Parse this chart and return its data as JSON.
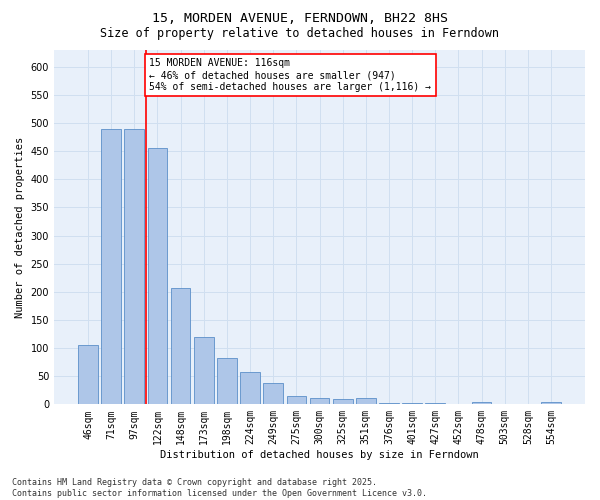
{
  "title": "15, MORDEN AVENUE, FERNDOWN, BH22 8HS",
  "subtitle": "Size of property relative to detached houses in Ferndown",
  "xlabel": "Distribution of detached houses by size in Ferndown",
  "ylabel": "Number of detached properties",
  "categories": [
    "46sqm",
    "71sqm",
    "97sqm",
    "122sqm",
    "148sqm",
    "173sqm",
    "198sqm",
    "224sqm",
    "249sqm",
    "275sqm",
    "300sqm",
    "325sqm",
    "351sqm",
    "376sqm",
    "401sqm",
    "427sqm",
    "452sqm",
    "478sqm",
    "503sqm",
    "528sqm",
    "554sqm"
  ],
  "values": [
    105,
    490,
    490,
    455,
    207,
    120,
    82,
    57,
    38,
    14,
    12,
    10,
    12,
    2,
    2,
    2,
    0,
    5,
    0,
    0,
    5
  ],
  "bar_color": "#aec6e8",
  "bar_edge_color": "#5b8fc9",
  "grid_color": "#d0dff0",
  "background_color": "#e8f0fa",
  "vline_color": "red",
  "annotation_text": "15 MORDEN AVENUE: 116sqm\n← 46% of detached houses are smaller (947)\n54% of semi-detached houses are larger (1,116) →",
  "annotation_box_color": "white",
  "annotation_box_edge_color": "red",
  "footer_text": "Contains HM Land Registry data © Crown copyright and database right 2025.\nContains public sector information licensed under the Open Government Licence v3.0.",
  "ylim": [
    0,
    630
  ],
  "yticks": [
    0,
    50,
    100,
    150,
    200,
    250,
    300,
    350,
    400,
    450,
    500,
    550,
    600
  ],
  "title_fontsize": 9.5,
  "subtitle_fontsize": 8.5,
  "axis_label_fontsize": 7.5,
  "tick_fontsize": 7,
  "annotation_fontsize": 7,
  "footer_fontsize": 6
}
